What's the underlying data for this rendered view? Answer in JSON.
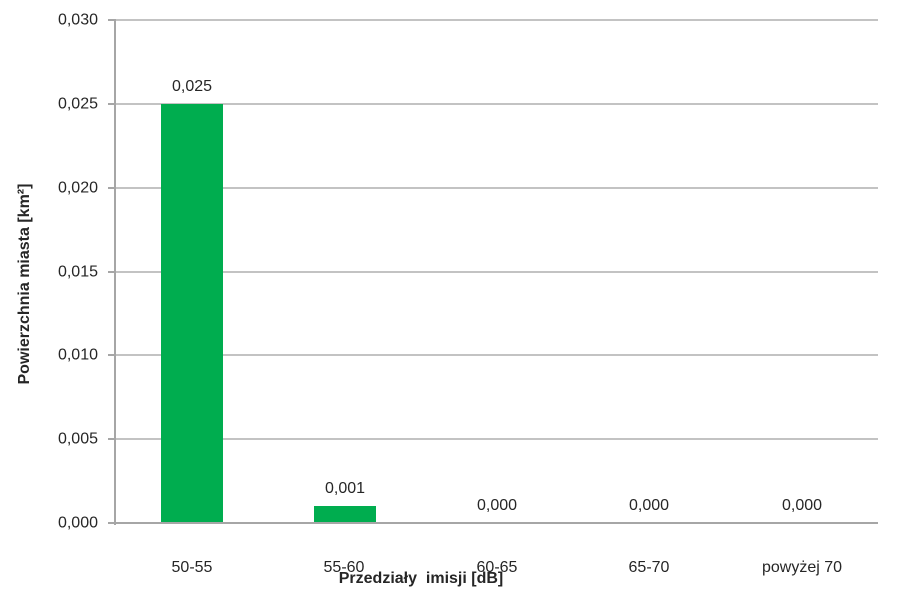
{
  "chart_data": {
    "type": "bar",
    "title": "",
    "xlabel": "Przedziały  imisji [dB]",
    "ylabel": "Powierzchnia miasta [km²]",
    "categories": [
      "50-55",
      "55-60",
      "60-65",
      "65-70",
      "powyżej 70"
    ],
    "values": [
      0.025,
      0.001,
      0.0,
      0.0,
      0.0
    ],
    "value_labels": [
      "0,025",
      "0,001",
      "0,000",
      "0,000",
      "0,000"
    ],
    "ylim": [
      0,
      0.03
    ],
    "yticks": {
      "values": [
        0,
        0.005,
        0.01,
        0.015,
        0.02,
        0.025,
        0.03
      ],
      "labels": [
        "0,000",
        "0,005",
        "0,010",
        "0,015",
        "0,020",
        "0,025",
        "0,030"
      ]
    },
    "grid": "horizontal",
    "legend": "none",
    "decimal_separator": ",",
    "colors": {
      "bar": "#00AD4F",
      "gridline": "#C3C3C3",
      "axis": "#A6A6A6",
      "text": "#262626",
      "background": "#FFFFFF"
    }
  }
}
